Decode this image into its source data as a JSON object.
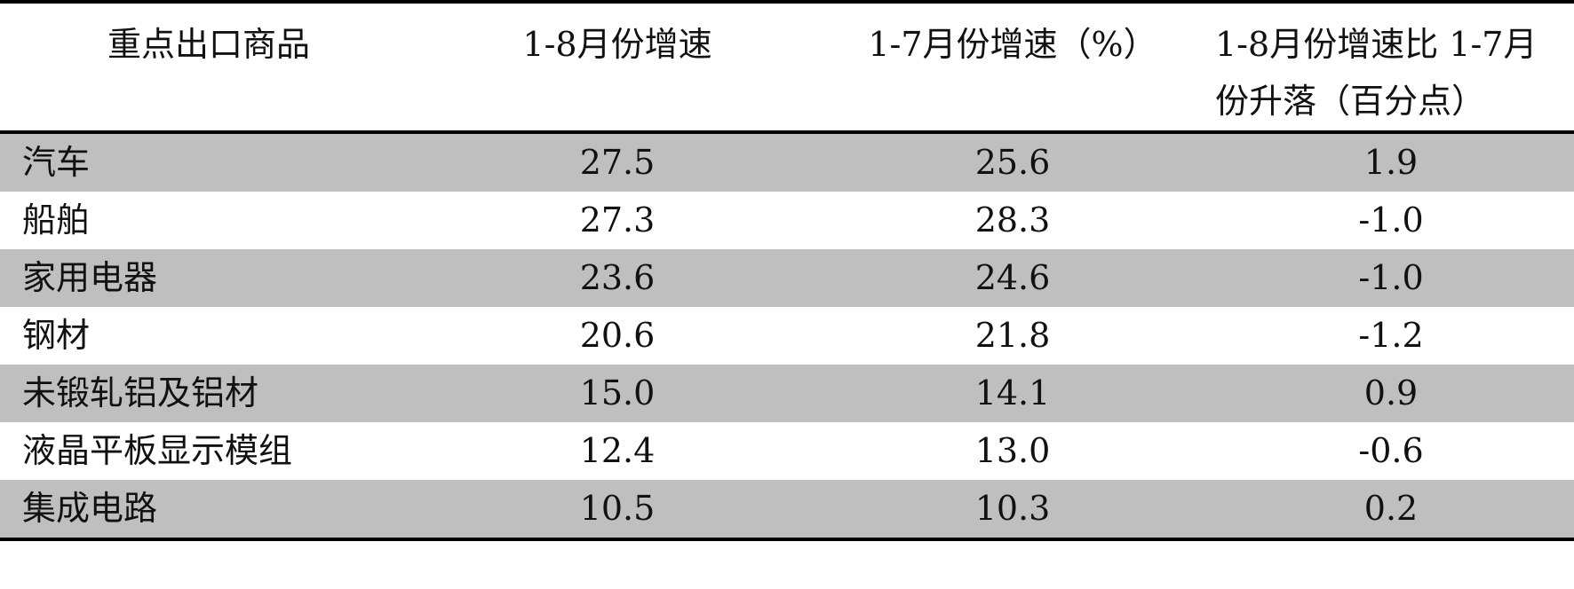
{
  "table": {
    "header": [
      "重点出口商品",
      "1-8月份增速",
      "1-7月份增速（%）",
      "1-8月份增速比 1-7月份升落（百分点）"
    ],
    "rows": [
      [
        "汽车",
        "27.5",
        "25.6",
        "1.9"
      ],
      [
        "船舶",
        "27.3",
        "28.3",
        "-1.0"
      ],
      [
        "家用电器",
        "23.6",
        "24.6",
        "-1.0"
      ],
      [
        "钢材",
        "20.6",
        "21.8",
        "-1.2"
      ],
      [
        "未锻轧铝及铝材",
        "15.0",
        "14.1",
        "0.9"
      ],
      [
        "液晶平板显示模组",
        "12.4",
        "13.0",
        "-0.6"
      ],
      [
        "集成电路",
        "10.5",
        "10.3",
        "0.2"
      ]
    ]
  }
}
